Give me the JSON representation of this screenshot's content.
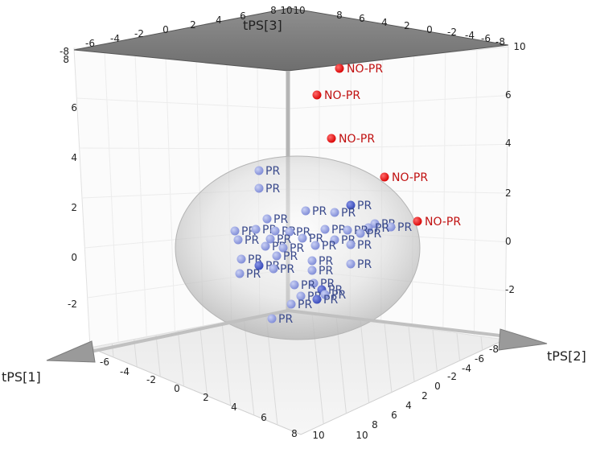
{
  "chart_data": {
    "type": "scatter",
    "title": "",
    "axes": {
      "x": {
        "label": "tPS[1]",
        "ticks": [
          "-6",
          "-4",
          "-2",
          "0",
          "2",
          "4",
          "6",
          "8",
          "10"
        ]
      },
      "y": {
        "label": "tPS[2]",
        "ticks": [
          "-8",
          "-6",
          "-4",
          "-2",
          "0",
          "2",
          "4",
          "6",
          "8",
          "10"
        ]
      },
      "z": {
        "label": "tPS[3]",
        "ticks": [
          "-2",
          "0",
          "2",
          "4",
          "6"
        ]
      },
      "top_x_ticks": [
        "-6",
        "-4",
        "-2",
        "0",
        "2",
        "4",
        "6",
        "8",
        "10"
      ],
      "top_y_ticks": [
        "-8",
        "-6",
        "-4",
        "-2",
        "0",
        "2",
        "4",
        "6",
        "8",
        "10"
      ],
      "left_edge_ticks": [
        "-8",
        "8"
      ],
      "right_z_ticks": [
        "-2",
        "0",
        "2",
        "4",
        "6"
      ]
    },
    "hotelling_ellipse": true,
    "grid": true,
    "series": [
      {
        "name": "NO-PR",
        "color": "#e00000",
        "points": [
          {
            "label": "NO-PR",
            "tPS1": 5.5,
            "tPS2": 1.0,
            "tPS3": 7.2
          },
          {
            "label": "NO-PR",
            "tPS1": 3.5,
            "tPS2": 2.5,
            "tPS3": 6.2
          },
          {
            "label": "NO-PR",
            "tPS1": 4.5,
            "tPS2": 0.0,
            "tPS3": 4.5
          },
          {
            "label": "NO-PR",
            "tPS1": 5.8,
            "tPS2": -2.0,
            "tPS3": 3.2
          },
          {
            "label": "NO-PR",
            "tPS1": 6.5,
            "tPS2": -3.8,
            "tPS3": 2.0
          }
        ]
      },
      {
        "name": "PR",
        "color": "#6f80d8",
        "points": [
          {
            "label": "PR"
          },
          {
            "label": "PR"
          },
          {
            "label": "PR"
          },
          {
            "label": "PR"
          },
          {
            "label": "PR"
          },
          {
            "label": "PR"
          },
          {
            "label": "PR"
          },
          {
            "label": "PR"
          },
          {
            "label": "PR"
          },
          {
            "label": "PR"
          },
          {
            "label": "PR"
          },
          {
            "label": "PR"
          },
          {
            "label": "PR"
          },
          {
            "label": "PR"
          },
          {
            "label": "PR"
          },
          {
            "label": "PR"
          },
          {
            "label": "PR"
          },
          {
            "label": "PR"
          },
          {
            "label": "PR"
          },
          {
            "label": "PR"
          },
          {
            "label": "PR"
          },
          {
            "label": "PR"
          },
          {
            "label": "PR"
          },
          {
            "label": "PR"
          },
          {
            "label": "PR"
          },
          {
            "label": "PR"
          },
          {
            "label": "PR"
          },
          {
            "label": "PR"
          },
          {
            "label": "PR"
          },
          {
            "label": "PR"
          },
          {
            "label": "PR"
          },
          {
            "label": "PR"
          },
          {
            "label": "PR"
          },
          {
            "label": "PR"
          },
          {
            "label": "PR"
          },
          {
            "label": "PR"
          },
          {
            "label": "PR"
          },
          {
            "label": "PR"
          },
          {
            "label": "PR"
          },
          {
            "label": "PR"
          }
        ]
      }
    ]
  }
}
